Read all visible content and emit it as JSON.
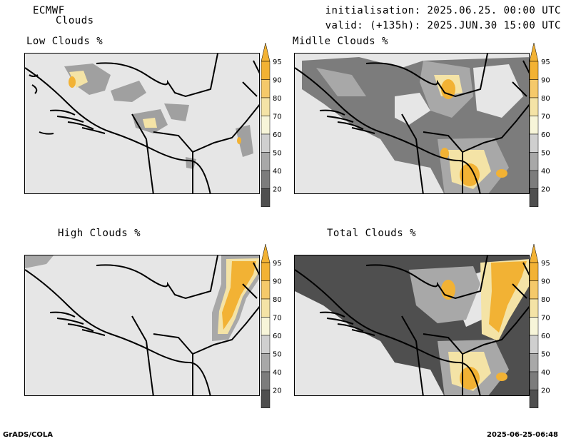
{
  "header": {
    "model": "ECMWF",
    "product": "Clouds",
    "init_label": "initialisation: 2025.06.25. 00:00 UTC",
    "valid_label": "valid: (+135h): 2025.JUN.30 15:00 UTC"
  },
  "panels": [
    {
      "id": "low",
      "title": "Low Clouds %"
    },
    {
      "id": "middle",
      "title": "Midlle Clouds %"
    },
    {
      "id": "high",
      "title": "High Clouds %"
    },
    {
      "id": "total",
      "title": "Total Clouds %"
    }
  ],
  "colorbar": {
    "labels": [
      "95",
      "90",
      "80",
      "70",
      "60",
      "50",
      "40",
      "20"
    ],
    "colors": [
      "#f2b234",
      "#f5c96a",
      "#f4e3a6",
      "#f7f5d9",
      "#cfcfcf",
      "#a8a8a8",
      "#7c7c7c",
      "#4f4f4f"
    ]
  },
  "footer": {
    "left": "GrADS/COLA",
    "right": "2025-06-25-06:48"
  }
}
